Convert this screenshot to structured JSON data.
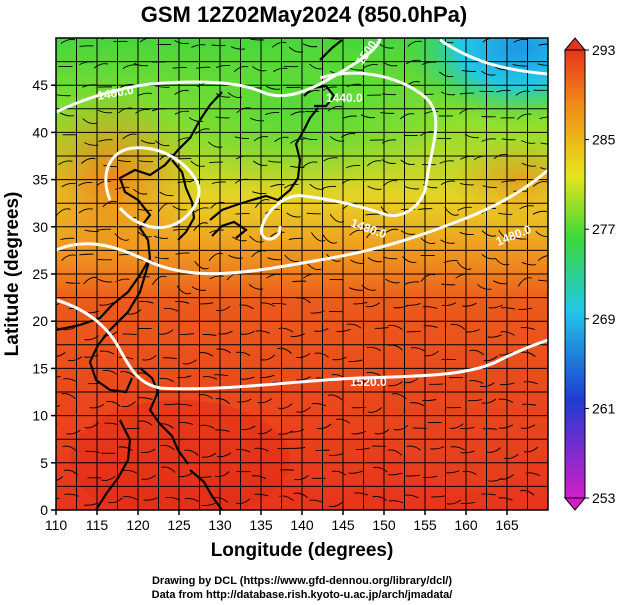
{
  "title": "GSM 12Z02May2024 (850.0hPa)",
  "xlabel": "Longitude (degrees)",
  "ylabel": "Latitude (degrees)",
  "x_ticks": [
    "110",
    "115",
    "120",
    "125",
    "130",
    "135",
    "140",
    "145",
    "150",
    "155",
    "160",
    "165"
  ],
  "y_ticks": [
    "0",
    "5",
    "10",
    "15",
    "20",
    "25",
    "30",
    "35",
    "40",
    "45"
  ],
  "colorbar_ticks": [
    "293",
    "285",
    "277",
    "269",
    "261",
    "253"
  ],
  "credits": {
    "line1": "Drawing by DCL (https://www.gfd-dennou.org/library/dcl/)",
    "line2": "Data from http://database.rish.kyoto-u.ac.jp/arch/jmadata/"
  },
  "contour_labels": [
    "1460.0",
    "1440.0",
    "1480.0",
    "1480.0",
    "1520.0",
    "1500.0"
  ],
  "colors": {
    "warm": "#e8341c",
    "orange": "#f39a18",
    "yellow": "#e8e41c",
    "green": "#3cd83a",
    "cyan": "#22c8e6",
    "blue": "#1e3cd2",
    "magenta": "#d21ec8"
  },
  "chart_data": {
    "type": "heatmap",
    "title": "GSM 12Z02May2024 (850.0hPa)",
    "xlabel": "Longitude (degrees)",
    "ylabel": "Latitude (degrees)",
    "xlim": [
      110,
      170
    ],
    "ylim": [
      0,
      50
    ],
    "colorbar_range": [
      253,
      293
    ],
    "colorbar_ticks": [
      293,
      285,
      277,
      269,
      261,
      253
    ],
    "overlays": [
      "temperature shading",
      "geopotential height contours (white)",
      "wind streamlines",
      "coastlines"
    ],
    "contours": [
      1460.0,
      1440.0,
      1480.0,
      1480.0,
      1520.0,
      1500.0
    ],
    "grid": true
  }
}
